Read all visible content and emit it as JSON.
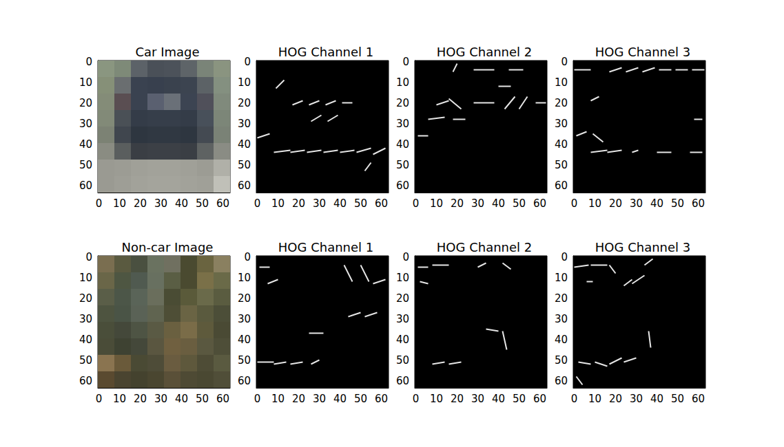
{
  "chart_data": [
    {
      "type": "image",
      "title": "Car Image",
      "xlim": [
        -0.5,
        63.5
      ],
      "ylim": [
        63.5,
        -0.5
      ],
      "xticks": [
        0,
        10,
        20,
        30,
        40,
        50,
        60
      ],
      "yticks": [
        0,
        10,
        20,
        30,
        40,
        50,
        60
      ],
      "cells": [
        [
          "#8a9680",
          "#7e8a78",
          "#5c6268",
          "#4a5058",
          "#4c525a",
          "#5e6468",
          "#7a8478",
          "#8a9480"
        ],
        [
          "#869078",
          "#6a6e70",
          "#3a4250",
          "#38404e",
          "#3a424e",
          "#3c4450",
          "#5c6266",
          "#849080"
        ],
        [
          "#848c78",
          "#5a4e52",
          "#3a4250",
          "#5a6070",
          "#6a7078",
          "#3c4452",
          "#50505a",
          "#808a7c"
        ],
        [
          "#828a78",
          "#4a5056",
          "#343c48",
          "#363e4a",
          "#363e4a",
          "#343c48",
          "#48505a",
          "#7c8678"
        ],
        [
          "#7c8274",
          "#40464e",
          "#2e3640",
          "#303842",
          "#303842",
          "#2e3640",
          "#444a52",
          "#7a8276"
        ],
        [
          "#8a8c82",
          "#5a5e5e",
          "#3a3e44",
          "#3c4046",
          "#3c4046",
          "#3a3e44",
          "#5e6262",
          "#8a8c84"
        ],
        [
          "#9a9a92",
          "#9c9c94",
          "#a0a098",
          "#a2a29a",
          "#a2a29a",
          "#a0a098",
          "#9c9c94",
          "#b0b0a8"
        ],
        [
          "#9a9a92",
          "#9e9e96",
          "#a2a29a",
          "#a4a49c",
          "#a4a49c",
          "#a2a29a",
          "#a0a098",
          "#c0c0b8"
        ]
      ]
    },
    {
      "type": "hog",
      "title": "HOG Channel 1",
      "color": "#ffffff",
      "xlim": [
        -0.5,
        63.5
      ],
      "ylim": [
        63.5,
        -0.5
      ],
      "xticks": [
        0,
        10,
        20,
        30,
        40,
        50,
        60
      ],
      "yticks": [
        0,
        10,
        20,
        30,
        40,
        50,
        60
      ],
      "segments": [
        [
          8,
          44,
          16,
          43
        ],
        [
          16,
          44,
          23,
          43
        ],
        [
          24,
          44,
          31,
          43
        ],
        [
          32,
          44,
          39,
          43
        ],
        [
          40,
          44,
          47,
          43
        ],
        [
          48,
          44,
          55,
          42
        ],
        [
          56,
          45,
          62,
          42
        ],
        [
          17,
          21,
          22,
          19
        ],
        [
          25,
          21,
          30,
          19
        ],
        [
          33,
          21,
          38,
          19
        ],
        [
          41,
          20,
          46,
          20
        ],
        [
          26,
          29,
          31,
          26
        ],
        [
          34,
          29,
          39,
          26
        ],
        [
          0,
          37,
          6,
          35
        ],
        [
          9,
          13,
          13,
          9
        ],
        [
          52,
          53,
          55,
          49
        ]
      ]
    },
    {
      "type": "hog",
      "title": "HOG Channel 2",
      "color": "#ffffff",
      "xlim": [
        -0.5,
        63.5
      ],
      "ylim": [
        63.5,
        -0.5
      ],
      "xticks": [
        0,
        10,
        20,
        30,
        40,
        50,
        60
      ],
      "yticks": [
        0,
        10,
        20,
        30,
        40,
        50,
        60
      ],
      "segments": [
        [
          28,
          4,
          38,
          4
        ],
        [
          45,
          4,
          52,
          4
        ],
        [
          10,
          21,
          16,
          19
        ],
        [
          16,
          18,
          22,
          23
        ],
        [
          28,
          20,
          38,
          20
        ],
        [
          43,
          23,
          48,
          17
        ],
        [
          50,
          23,
          54,
          17
        ],
        [
          58,
          20,
          63,
          20
        ],
        [
          6,
          28,
          14,
          27
        ],
        [
          18,
          28,
          24,
          28
        ],
        [
          1,
          36,
          6,
          36
        ],
        [
          40,
          12,
          46,
          12
        ],
        [
          18,
          5,
          20,
          1
        ]
      ]
    },
    {
      "type": "hog",
      "title": "HOG Channel 3",
      "color": "#ffffff",
      "xlim": [
        -0.5,
        63.5
      ],
      "ylim": [
        63.5,
        -0.5
      ],
      "xticks": [
        0,
        10,
        20,
        30,
        40,
        50,
        60
      ],
      "yticks": [
        0,
        10,
        20,
        30,
        40,
        50,
        60
      ],
      "segments": [
        [
          0,
          4,
          8,
          4
        ],
        [
          17,
          5,
          23,
          3
        ],
        [
          25,
          5,
          31,
          3
        ],
        [
          33,
          5,
          39,
          3
        ],
        [
          41,
          4,
          47,
          4
        ],
        [
          49,
          4,
          55,
          4
        ],
        [
          57,
          4,
          63,
          4
        ],
        [
          9,
          35,
          14,
          39
        ],
        [
          1,
          36,
          6,
          34
        ],
        [
          8,
          44,
          16,
          43
        ],
        [
          16,
          44,
          23,
          43
        ],
        [
          28,
          44,
          31,
          43
        ],
        [
          40,
          44,
          47,
          44
        ],
        [
          56,
          44,
          62,
          44
        ],
        [
          8,
          19,
          12,
          17
        ],
        [
          58,
          28,
          62,
          28
        ]
      ]
    },
    {
      "type": "image",
      "title": "Non-car Image",
      "xlim": [
        -0.5,
        63.5
      ],
      "ylim": [
        63.5,
        -0.5
      ],
      "xticks": [
        0,
        10,
        20,
        30,
        40,
        50,
        60
      ],
      "yticks": [
        0,
        10,
        20,
        30,
        40,
        50,
        60
      ],
      "cells": [
        [
          "#7a6e50",
          "#5a5a40",
          "#4a5040",
          "#6a7260",
          "#707060",
          "#4a4a30",
          "#6a6440",
          "#8a8060"
        ],
        [
          "#6a6648",
          "#4e5642",
          "#505a50",
          "#687060",
          "#5a5e44",
          "#4a4a30",
          "#7a7048",
          "#6a6a48"
        ],
        [
          "#5a5e48",
          "#4c5648",
          "#5a6458",
          "#6a6e5c",
          "#4a4c34",
          "#5a5a3a",
          "#6a6a4a",
          "#5a5c40"
        ],
        [
          "#4e5440",
          "#4a5446",
          "#5a6256",
          "#606450",
          "#4e4e36",
          "#6a6444",
          "#5a5a3e",
          "#4c4e38"
        ],
        [
          "#4a4e3a",
          "#44483a",
          "#4e5444",
          "#5a5a44",
          "#6a6040",
          "#7a6c48",
          "#5e5a3c",
          "#4a4a34"
        ],
        [
          "#4a4c38",
          "#3e4232",
          "#44483a",
          "#5a5640",
          "#706040",
          "#6a5e40",
          "#5a5840",
          "#4e4e38"
        ],
        [
          "#8a7450",
          "#6a5a3a",
          "#4a4a34",
          "#4e4c38",
          "#6a5c40",
          "#5e583c",
          "#4e4c36",
          "#5a5a40"
        ],
        [
          "#5a4a30",
          "#4a4430",
          "#44422e",
          "#4a4630",
          "#5a5038",
          "#4e4a34",
          "#4a4832",
          "#504e38"
        ]
      ]
    },
    {
      "type": "hog",
      "title": "HOG Channel 1",
      "color": "#ffffff",
      "xlim": [
        -0.5,
        63.5
      ],
      "ylim": [
        63.5,
        -0.5
      ],
      "xticks": [
        0,
        10,
        20,
        30,
        40,
        50,
        60
      ],
      "yticks": [
        0,
        10,
        20,
        30,
        40,
        50,
        60
      ],
      "segments": [
        [
          0,
          51,
          8,
          51
        ],
        [
          8,
          52,
          14,
          51
        ],
        [
          16,
          52,
          22,
          51
        ],
        [
          44,
          29,
          50,
          27
        ],
        [
          52,
          29,
          58,
          27
        ],
        [
          42,
          4,
          46,
          12
        ],
        [
          50,
          4,
          54,
          12
        ],
        [
          56,
          13,
          62,
          11
        ],
        [
          26,
          52,
          30,
          50
        ],
        [
          1,
          5,
          6,
          5
        ],
        [
          25,
          37,
          32,
          37
        ],
        [
          5,
          13,
          10,
          11
        ]
      ]
    },
    {
      "type": "hog",
      "title": "HOG Channel 2",
      "color": "#ffffff",
      "xlim": [
        -0.5,
        63.5
      ],
      "ylim": [
        63.5,
        -0.5
      ],
      "xticks": [
        0,
        10,
        20,
        30,
        40,
        50,
        60
      ],
      "yticks": [
        0,
        10,
        20,
        30,
        40,
        50,
        60
      ],
      "segments": [
        [
          1,
          5,
          6,
          5
        ],
        [
          8,
          4,
          16,
          4
        ],
        [
          34,
          35,
          40,
          36
        ],
        [
          42,
          36,
          44,
          45
        ],
        [
          8,
          52,
          14,
          51
        ],
        [
          16,
          52,
          22,
          51
        ],
        [
          30,
          5,
          34,
          3
        ],
        [
          42,
          3,
          46,
          6
        ],
        [
          2,
          12,
          6,
          13
        ]
      ]
    },
    {
      "type": "hog",
      "title": "HOG Channel 3",
      "color": "#ffffff",
      "xlim": [
        -0.5,
        63.5
      ],
      "ylim": [
        63.5,
        -0.5
      ],
      "xticks": [
        0,
        10,
        20,
        30,
        40,
        50,
        60
      ],
      "yticks": [
        0,
        10,
        20,
        30,
        40,
        50,
        60
      ],
      "segments": [
        [
          0,
          5,
          7,
          4
        ],
        [
          8,
          4,
          16,
          4
        ],
        [
          17,
          4,
          20,
          8
        ],
        [
          24,
          14,
          28,
          11
        ],
        [
          28,
          13,
          34,
          9
        ],
        [
          34,
          4,
          38,
          1
        ],
        [
          36,
          36,
          37,
          44
        ],
        [
          2,
          51,
          8,
          52
        ],
        [
          10,
          51,
          16,
          53
        ],
        [
          17,
          52,
          23,
          49
        ],
        [
          24,
          51,
          30,
          49
        ],
        [
          1,
          58,
          4,
          62
        ],
        [
          6,
          12,
          9,
          12
        ]
      ]
    }
  ]
}
